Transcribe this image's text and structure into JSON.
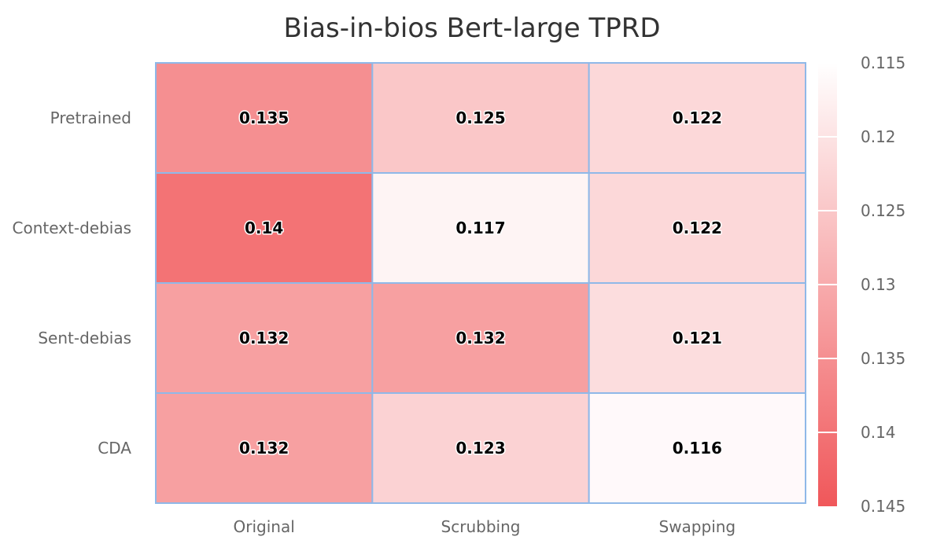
{
  "chart_data": {
    "type": "heatmap",
    "title": "Bias-in-bios Bert-large TPRD",
    "x_categories": [
      "Original",
      "Scrubbing",
      "Swapping"
    ],
    "y_categories": [
      "Pretrained",
      "Context-debias",
      "Sent-debias",
      "CDA"
    ],
    "values": [
      [
        0.135,
        0.125,
        0.122
      ],
      [
        0.14,
        0.117,
        0.122
      ],
      [
        0.132,
        0.132,
        0.121
      ],
      [
        0.132,
        0.123,
        0.116
      ]
    ],
    "color_scale": {
      "min": 0.115,
      "max": 0.145,
      "min_color": "#ffffff",
      "max_color": "#f0575a",
      "ticks": [
        "0.115",
        "0.12",
        "0.125",
        "0.13",
        "0.135",
        "0.14",
        "0.145"
      ]
    },
    "cell_border_color": "#8fb8e8"
  }
}
